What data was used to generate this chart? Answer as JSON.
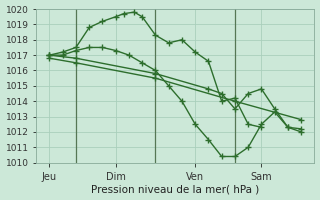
{
  "bg_color": "#cce8d8",
  "grid_color": "#aacfbc",
  "line_color": "#2d6e2d",
  "marker_color": "#2d6e2d",
  "title": "Pression niveau de la mer( hPa )",
  "ylim": [
    1010,
    1020
  ],
  "xlim": [
    0,
    10.5
  ],
  "yticks": [
    1010,
    1011,
    1012,
    1013,
    1014,
    1015,
    1016,
    1017,
    1018,
    1019,
    1020
  ],
  "xtick_labels": [
    "Jeu",
    "Dim",
    "Ven",
    "Sam"
  ],
  "xtick_positions": [
    0.5,
    3.0,
    6.0,
    8.5
  ],
  "vlines": [
    1.5,
    4.5,
    7.5
  ],
  "series": [
    {
      "x": [
        0.5,
        1.0,
        1.5,
        2.0,
        2.5,
        3.0,
        3.3,
        3.7,
        4.0,
        4.5,
        5.0,
        5.5,
        6.0,
        6.5,
        7.0,
        7.5,
        8.0,
        8.5
      ],
      "y": [
        1017.0,
        1017.2,
        1017.5,
        1018.8,
        1019.2,
        1019.5,
        1019.7,
        1019.8,
        1019.5,
        1018.3,
        1017.8,
        1018.0,
        1017.2,
        1016.6,
        1014.0,
        1014.2,
        1012.5,
        1012.3
      ]
    },
    {
      "x": [
        0.5,
        1.0,
        1.5,
        2.0,
        2.5,
        3.0,
        3.5,
        4.0,
        4.5,
        5.0,
        5.5,
        6.0,
        6.5,
        7.0,
        7.5,
        8.0,
        8.5,
        9.0,
        9.5,
        10.0
      ],
      "y": [
        1017.0,
        1017.0,
        1017.3,
        1017.5,
        1017.5,
        1017.3,
        1017.0,
        1016.5,
        1016.0,
        1015.0,
        1014.0,
        1012.5,
        1011.5,
        1010.4,
        1010.4,
        1011.0,
        1012.5,
        1013.3,
        1012.3,
        1012.0
      ]
    },
    {
      "x": [
        0.5,
        1.5,
        4.5,
        7.5,
        10.0
      ],
      "y": [
        1016.8,
        1016.5,
        1015.5,
        1014.0,
        1012.8
      ]
    },
    {
      "x": [
        0.5,
        1.5,
        4.5,
        6.5,
        7.0,
        7.5,
        8.0,
        8.5,
        9.0,
        9.5,
        10.0
      ],
      "y": [
        1017.0,
        1016.8,
        1015.8,
        1014.8,
        1014.5,
        1013.5,
        1014.5,
        1014.8,
        1013.5,
        1012.3,
        1012.2
      ]
    }
  ]
}
